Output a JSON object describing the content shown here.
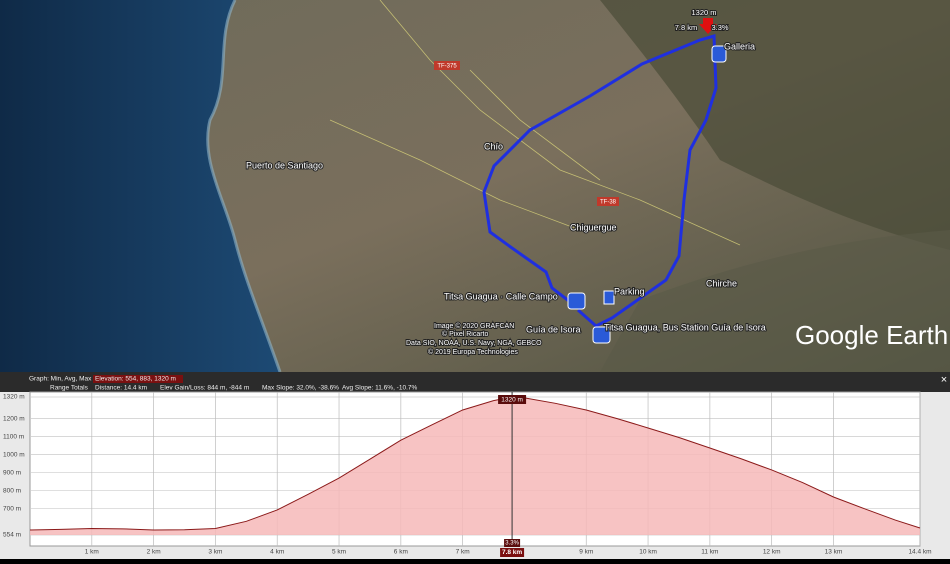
{
  "map": {
    "labels": [
      "Galleria",
      "TF-375",
      "Chío",
      "Puerto de Santiago",
      "TF-38",
      "Chiguergue",
      "Chirche",
      "Parking",
      "Titsa Guagua · Calle Campo",
      "Guía de Isora",
      "Titsa Guagua, Bus Station Guía de Isora"
    ],
    "marker": {
      "elevation": "1320 m",
      "distance": "7.8 km",
      "slope": "3.3%"
    },
    "attribution": [
      "Image © 2020 GRAFCAN",
      "© Pixel Ricarto",
      "Data SIO, NOAA, U.S. Navy, NGA, GEBCO",
      "© 2019 Europa Technologies"
    ],
    "brand": "Google Earth"
  },
  "profile_header": {
    "graph": "Graph: Min, Avg, Max",
    "elevation": "Elevation: 554, 883, 1320 m",
    "range": "Range Totals",
    "distance": "Distance: 14.4 km",
    "gain": "Elev Gain/Loss: 844 m, -844 m",
    "max_slope": "Max Slope: 32.0%, -38.6%",
    "avg_slope": "Avg Slope: 11.6%, -10.7%",
    "close": "×"
  },
  "chart_data": {
    "type": "area",
    "x": [
      0,
      0.5,
      1,
      1.5,
      2,
      2.5,
      3,
      3.5,
      4,
      4.5,
      5,
      5.5,
      6,
      6.5,
      7,
      7.5,
      7.8,
      8,
      8.5,
      9,
      9.5,
      10,
      10.5,
      11,
      11.5,
      12,
      12.5,
      13,
      13.5,
      14,
      14.4
    ],
    "values": [
      582,
      585,
      590,
      588,
      582,
      583,
      590,
      630,
      693,
      780,
      870,
      975,
      1080,
      1165,
      1248,
      1300,
      1320,
      1315,
      1285,
      1248,
      1200,
      1148,
      1095,
      1037,
      978,
      915,
      845,
      765,
      700,
      637,
      593
    ],
    "xlim": [
      0,
      14.4
    ],
    "ylim": [
      554,
      1320
    ],
    "xticks": [
      {
        "value": 1,
        "label": "1 km"
      },
      {
        "value": 2,
        "label": "2 km"
      },
      {
        "value": 3,
        "label": "3 km"
      },
      {
        "value": 4,
        "label": "4 km"
      },
      {
        "value": 5,
        "label": "5 km"
      },
      {
        "value": 6,
        "label": "6 km"
      },
      {
        "value": 7,
        "label": "7 km"
      },
      {
        "value": 9,
        "label": "9 km"
      },
      {
        "value": 10,
        "label": "10 km"
      },
      {
        "value": 11,
        "label": "11 km"
      },
      {
        "value": 12,
        "label": "12 km"
      },
      {
        "value": 13,
        "label": "13 km"
      },
      {
        "value": 14.4,
        "label": "14.4 km"
      }
    ],
    "yticks": [
      {
        "value": 554,
        "label": "554 m"
      },
      {
        "value": 700,
        "label": "700 m"
      },
      {
        "value": 800,
        "label": "800 m"
      },
      {
        "value": 900,
        "label": "900 m"
      },
      {
        "value": 1000,
        "label": "1000 m"
      },
      {
        "value": 1100,
        "label": "1100 m"
      },
      {
        "value": 1200,
        "label": "1200 m"
      },
      {
        "value": 1320,
        "label": "1320 m"
      }
    ],
    "color": "#8b1a1a",
    "fill": "#f6b8b8",
    "grid": true,
    "cursor": {
      "x": 7.8,
      "x_label": "7.8 km",
      "elevation_label": "1320 m",
      "slope_label": "3.3%"
    }
  }
}
